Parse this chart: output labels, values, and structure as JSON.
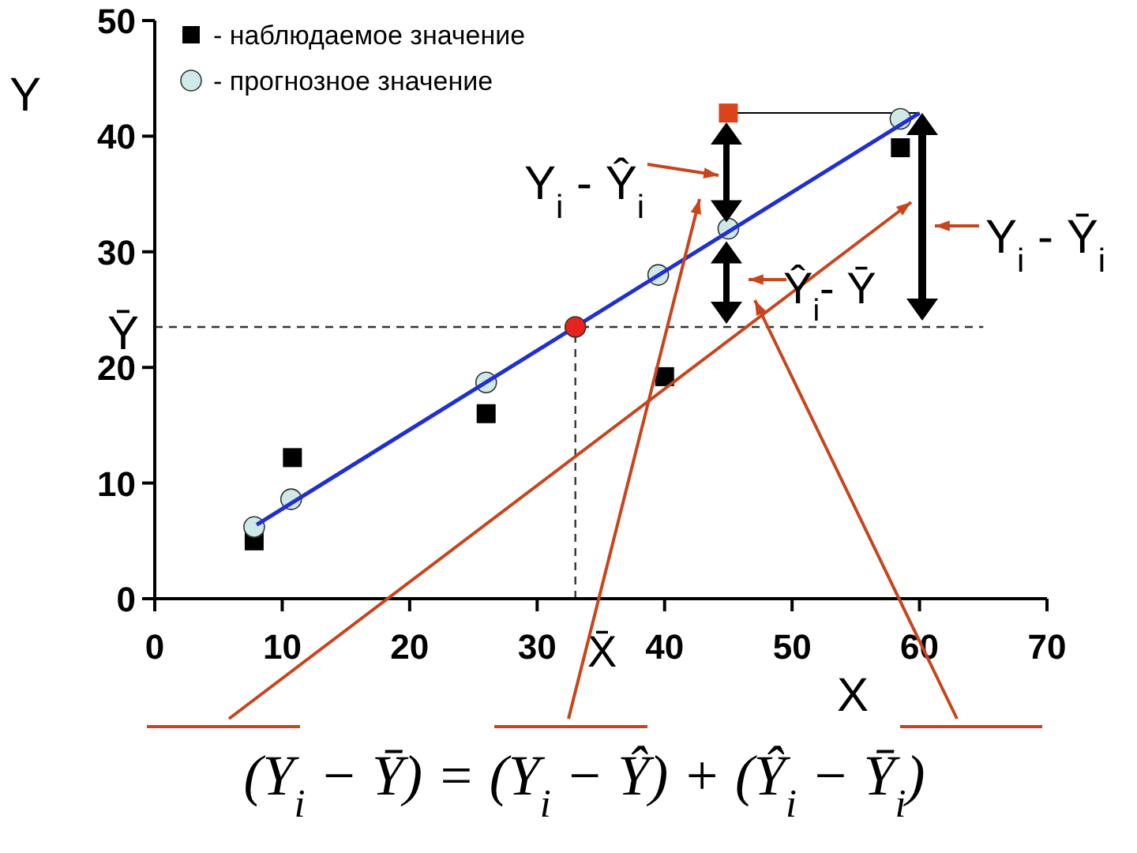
{
  "chart_data": {
    "type": "scatter",
    "xlabel": "X",
    "ylabel": "Y",
    "xlim": [
      0,
      70
    ],
    "xticks": [
      0,
      10,
      20,
      30,
      40,
      50,
      60,
      70
    ],
    "ylim": [
      0,
      50
    ],
    "yticks": [
      0,
      10,
      20,
      30,
      40,
      50
    ],
    "grid": false,
    "legend": "top left",
    "series": [
      {
        "name": "- наблюдаемое значение",
        "marker": "square",
        "color": "#000000",
        "colors": [
          "#000000",
          "#000000",
          "#000000",
          "#000000",
          "#d9441c",
          "#000000"
        ],
        "x": [
          7.8,
          10.8,
          26,
          40,
          45,
          58.5
        ],
        "values": [
          5,
          12.2,
          16,
          19.2,
          42,
          39
        ]
      },
      {
        "name": "- прогнозное значение",
        "marker": "circle",
        "color": "#cfe8e8",
        "x": [
          7.8,
          10.7,
          26,
          39.5,
          45,
          58.5
        ],
        "values": [
          6.2,
          8.6,
          18.7,
          28,
          32,
          41.5
        ]
      },
      {
        "type": "line",
        "color": "#1f2fd0",
        "x": [
          8,
          60
        ],
        "values": [
          6.4,
          42
        ]
      },
      {
        "marker": "circle",
        "color": "#e8221c",
        "x": [
          33
        ],
        "values": [
          23.5
        ]
      }
    ],
    "ref_lines": [
      {
        "axis": "y",
        "value": 23.5,
        "label": "Ȳ",
        "line_style": "dashed"
      },
      {
        "axis": "x",
        "value": 33,
        "label": "X̄",
        "line_style": "dashed"
      }
    ],
    "annotations": [
      "Y$_{i}$ - Ŷ$_{i}$",
      "Ŷ$_{i}$- Ȳ",
      "Y$_{i}$ - Ȳ$_{i}$",
      "(Y$_{i}$ − Ȳ) = (Y$_{i}$ − Ŷ) + (Ŷ$_{i}$ − Ȳ$_{i}$)"
    ]
  }
}
